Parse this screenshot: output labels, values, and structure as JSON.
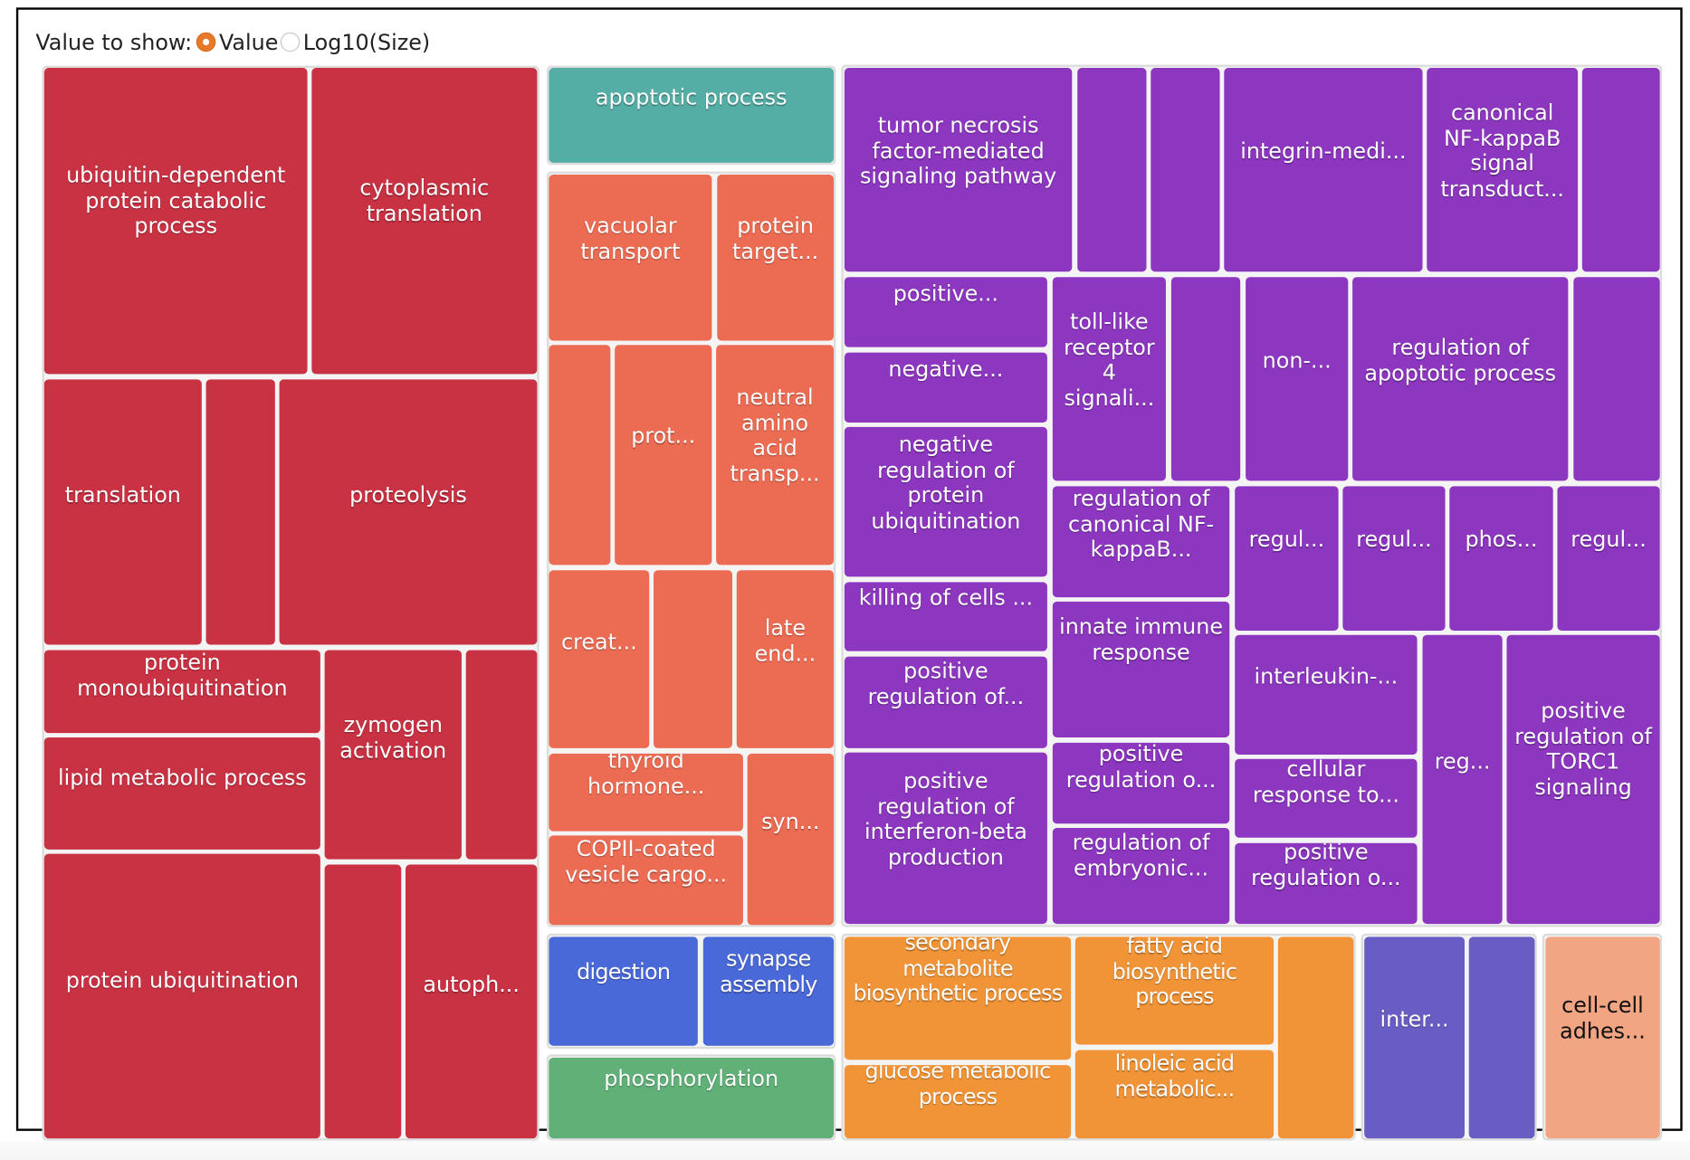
{
  "controls": {
    "label": "Value to show:",
    "options": [
      {
        "label": "Value",
        "selected": true
      },
      {
        "label": "Log10(Size)",
        "selected": false
      }
    ]
  },
  "colors": {
    "red": "#c83243",
    "teal": "#55aea6",
    "coral": "#ec6c53",
    "purple": "#8d37c0",
    "blue": "#4a69d8",
    "green": "#60b078",
    "orange": "#f09437",
    "slate_blue": "#685dc3",
    "salmon": "#f1a582"
  },
  "chart_data": {
    "type": "treemap",
    "title": "",
    "value_mode": "Value",
    "groups": [
      {
        "color": "red",
        "tiles": [
          "ubiquitin-dependent protein catabolic process",
          "cytoplasmic translation",
          "translation",
          "",
          "proteolysis",
          "protein monoubiquitination",
          "lipid metabolic process",
          "zymogen activation",
          "",
          "protein ubiquitination",
          "",
          "autoph..."
        ]
      },
      {
        "color": "teal",
        "tiles": [
          "apoptotic process"
        ]
      },
      {
        "color": "coral",
        "tiles": [
          "vacuolar transport",
          "protein target...",
          "",
          "prot...",
          "neutral amino acid transp...",
          "creat...",
          "",
          "late end...",
          "thyroid hormone...",
          "COPII-coated vesicle cargo...",
          "syn..."
        ]
      },
      {
        "color": "blue",
        "tiles": [
          "digestion",
          "synapse assembly"
        ]
      },
      {
        "color": "green",
        "tiles": [
          "phosphorylation"
        ]
      },
      {
        "color": "purple",
        "tiles": [
          "tumor necrosis factor-mediated signaling pathway",
          "",
          "",
          "integrin-medi...",
          "canonical NF-kappaB signal transduct...",
          "",
          "positive...",
          "negative...",
          "negative regulation of protein ubiquitination",
          "killing of cells ...",
          "positive regulation of...",
          "positive regulation of interferon-beta production",
          "toll-like receptor 4 signali...",
          "",
          "non-...",
          "regulation of apoptotic process",
          "",
          "regulation of canonical NF-kappaB...",
          "innate immune response",
          "positive regulation o...",
          "regulation of embryonic...",
          "regul...",
          "regul...",
          "phos...",
          "regul...",
          "interleukin-...",
          "cellular response to...",
          "positive regulation o...",
          "reg...",
          "positive regulation of TORC1 signaling"
        ]
      },
      {
        "color": "orange",
        "tiles": [
          "secondary metabolite biosynthetic process",
          "glucose metabolic process",
          "fatty acid biosynthetic process",
          "linoleic acid metabolic...",
          ""
        ]
      },
      {
        "color": "slate_blue",
        "tiles": [
          "inter...",
          ""
        ]
      },
      {
        "color": "salmon",
        "tiles": [
          "cell-cell adhes..."
        ]
      }
    ]
  }
}
